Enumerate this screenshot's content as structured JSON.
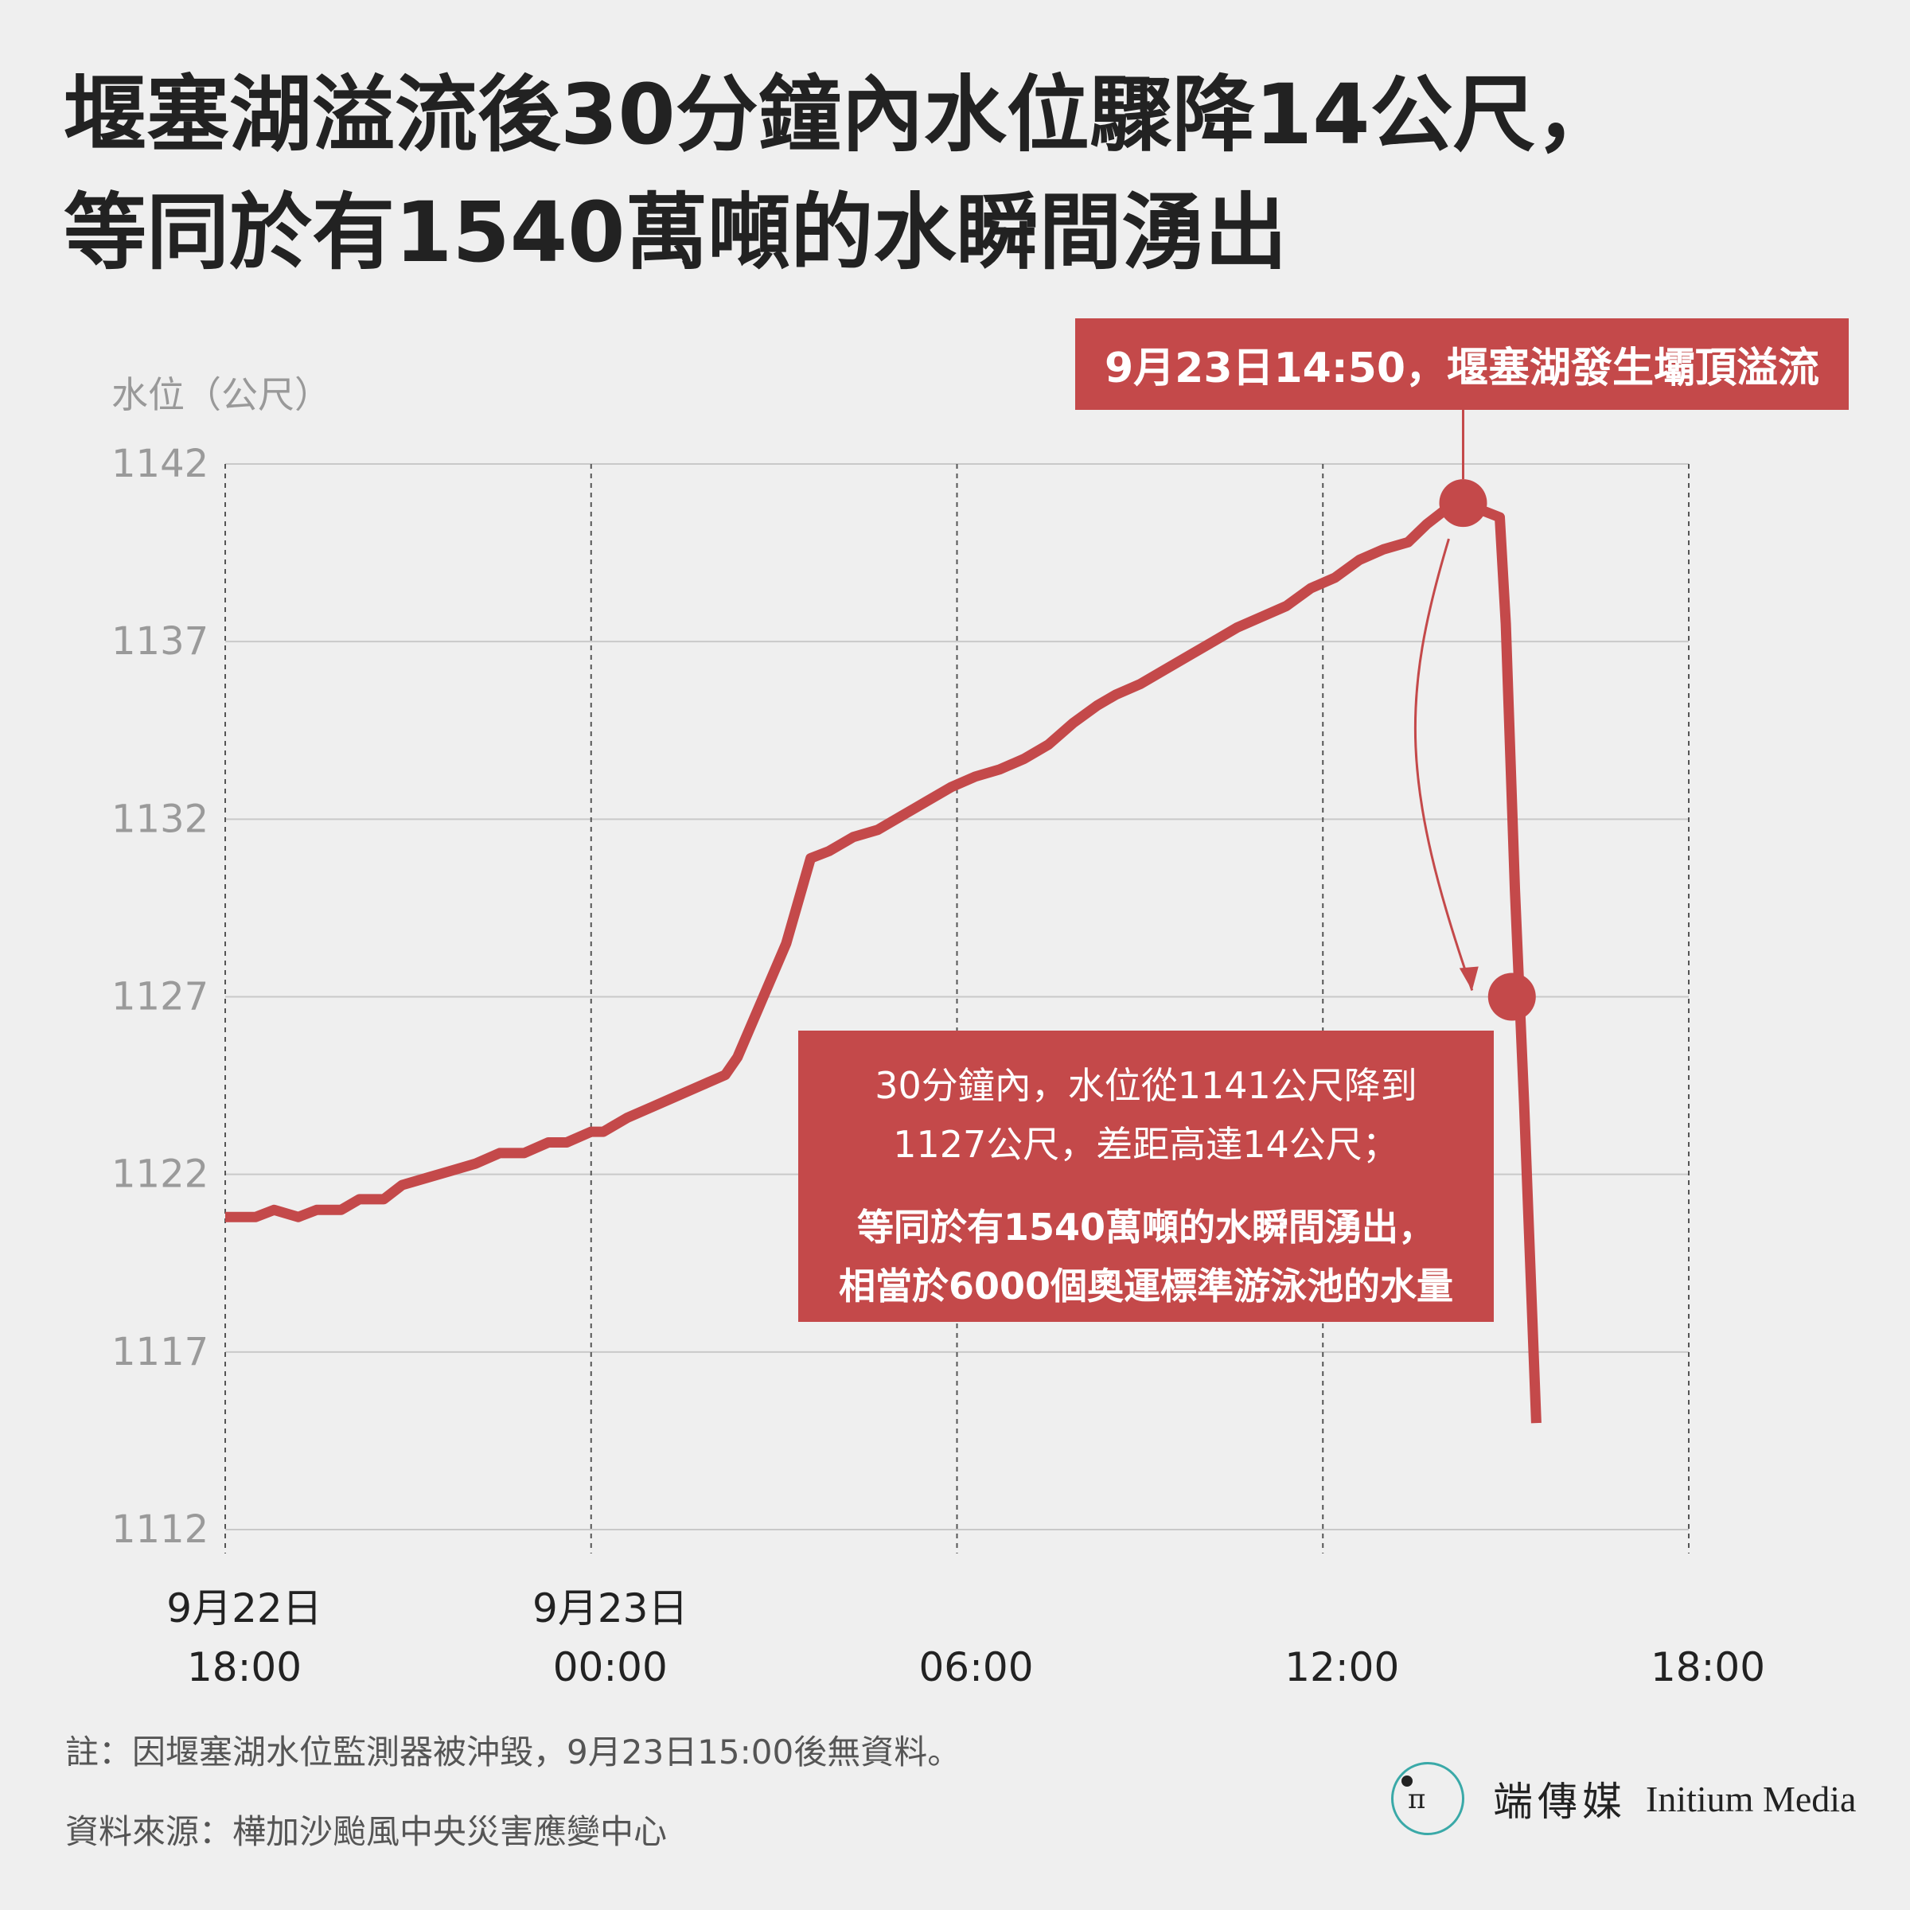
{
  "title": {
    "line1": "堰塞湖溢流後30分鐘內水位驟降14公尺，",
    "line2": "等同於有1540萬噸的水瞬間湧出"
  },
  "annotations": {
    "peak": "9月23日14:50，堰塞湖發生壩頂溢流",
    "drop_line1": "30分鐘內，水位從1141公尺降到",
    "drop_line2": "1127公尺，差距高達14公尺；",
    "drop_line3": "等同於有1540萬噸的水瞬間湧出，",
    "drop_line4": "相當於6000個奧運標準游泳池的水量"
  },
  "footer": {
    "note": "註：因堰塞湖水位監測器被沖毀，9月23日15:00後無資料。",
    "source": "資料來源：樺加沙颱風中央災害應變中心"
  },
  "brand": {
    "logo_mark": "π",
    "chinese": "端傳媒",
    "english": "Initium Media",
    "ring_color": "#3aa9a8"
  },
  "chart_data": {
    "type": "line",
    "title": "",
    "ylabel": "水位（公尺）",
    "xlabel": "",
    "ylim": [
      1112,
      1142
    ],
    "yticks": [
      1142,
      1137,
      1132,
      1127,
      1122,
      1117,
      1112
    ],
    "xlim_hours": [
      0,
      24
    ],
    "xticks": [
      {
        "hour": 0,
        "date": "9月22日",
        "time": "18:00"
      },
      {
        "hour": 6,
        "date": "9月23日",
        "time": "00:00"
      },
      {
        "hour": 12,
        "date": "",
        "time": "06:00"
      },
      {
        "hour": 18,
        "date": "",
        "time": "12:00"
      },
      {
        "hour": 24,
        "date": "",
        "time": "18:00"
      }
    ],
    "grid": true,
    "line_color": "#c4494a",
    "series": [
      {
        "name": "",
        "x_hours": [
          0,
          0.5,
          0.8,
          1.2,
          1.5,
          1.9,
          2.2,
          2.6,
          2.9,
          3.3,
          3.7,
          4.1,
          4.5,
          4.9,
          5.3,
          5.6,
          6.0,
          6.2,
          6.6,
          7.0,
          7.4,
          7.8,
          8.2,
          8.4,
          8.8,
          9.2,
          9.6,
          9.9,
          10.3,
          10.7,
          11.1,
          11.5,
          11.9,
          12.3,
          12.7,
          13.1,
          13.5,
          13.9,
          14.3,
          14.6,
          15.0,
          15.4,
          15.8,
          16.2,
          16.6,
          17.0,
          17.4,
          17.8,
          18.2,
          18.6,
          19.0,
          19.4,
          19.7,
          20.0,
          20.2,
          20.4,
          20.6,
          20.9,
          21.0,
          21.15,
          21.3,
          21.5
        ],
        "y": [
          1120.8,
          1120.8,
          1121.0,
          1120.8,
          1121.0,
          1121.0,
          1121.3,
          1121.3,
          1121.7,
          1121.9,
          1122.1,
          1122.3,
          1122.6,
          1122.6,
          1122.9,
          1122.9,
          1123.2,
          1123.2,
          1123.6,
          1123.9,
          1124.2,
          1124.5,
          1124.8,
          1125.3,
          1126.9,
          1128.5,
          1130.9,
          1131.1,
          1131.5,
          1131.7,
          1132.1,
          1132.5,
          1132.9,
          1133.2,
          1133.4,
          1133.7,
          1134.1,
          1134.7,
          1135.2,
          1135.5,
          1135.8,
          1136.2,
          1136.6,
          1137.0,
          1137.4,
          1137.7,
          1138.0,
          1138.5,
          1138.8,
          1139.3,
          1139.6,
          1139.8,
          1140.3,
          1140.7,
          1140.8,
          1140.9,
          1140.7,
          1140.5,
          1137.5,
          1130.0,
          1124.0,
          1115.0
        ]
      }
    ],
    "highlight_points": [
      {
        "label": "peak",
        "hour": 20.3,
        "y": 1140.9
      },
      {
        "label": "drop",
        "hour": 21.1,
        "y": 1127
      }
    ]
  }
}
